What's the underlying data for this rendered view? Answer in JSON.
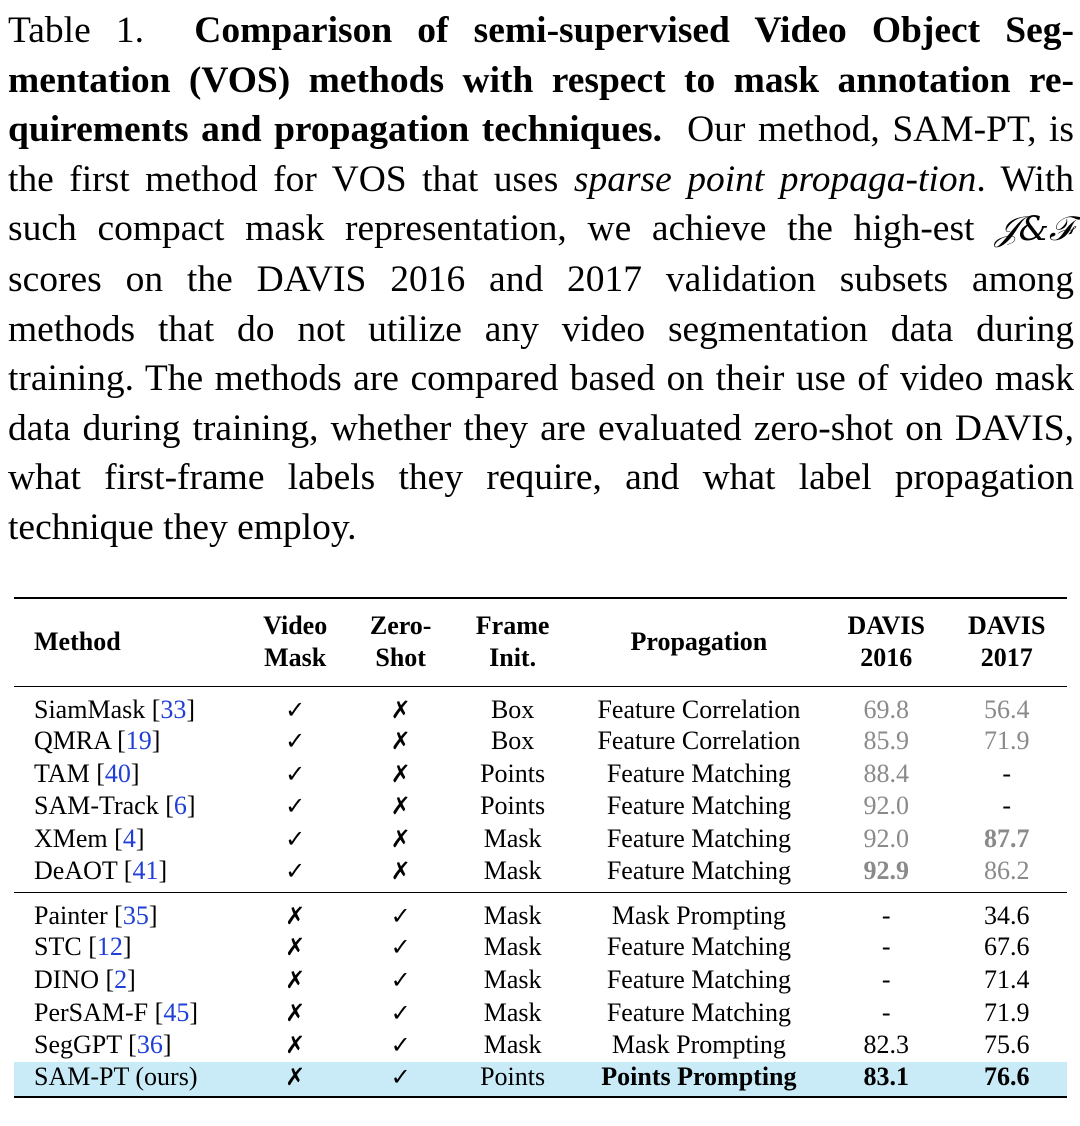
{
  "caption": {
    "label": "Table 1.",
    "bold_text": "Comparison of semi-supervised Video Object Seg-mentation (VOS) methods with respect to mask annotation re-quirements and propagation techniques.",
    "text_1": "Our method, SAM-PT, is the first method for VOS that uses",
    "italic_1": "sparse point propaga-tion",
    "text_2": ". With such compact mask representation, we achieve the high-est",
    "metric": "𝒥&ℱ",
    "text_3": "scores on the DAVIS 2016 and 2017 validation subsets among methods that do not utilize any video segmentation data during training. The methods are compared based on their use of video mask data during training, whether they are evaluated zero-shot on DAVIS, what first-frame labels they require, and what label propagation technique they employ."
  },
  "table": {
    "headers": {
      "method": "Method",
      "video_mask": "Video Mask",
      "zero_shot": "Zero-Shot",
      "frame_init": "Frame Init.",
      "propagation": "Propagation",
      "davis2016": "DAVIS 2016",
      "davis2017": "DAVIS 2017"
    },
    "rows_group1": [
      {
        "method": "SiamMask",
        "cite": "33",
        "video_mask": "✓",
        "zero_shot": "✗",
        "frame_init": "Box",
        "propagation": "Feature Correlation",
        "davis2016": "69.8",
        "davis2017": "56.4"
      },
      {
        "method": "QMRA",
        "cite": "19",
        "video_mask": "✓",
        "zero_shot": "✗",
        "frame_init": "Box",
        "propagation": "Feature Correlation",
        "davis2016": "85.9",
        "davis2017": "71.9"
      },
      {
        "method": "TAM",
        "cite": "40",
        "video_mask": "✓",
        "zero_shot": "✗",
        "frame_init": "Points",
        "propagation": "Feature Matching",
        "davis2016": "88.4",
        "davis2017": "-"
      },
      {
        "method": "SAM-Track",
        "cite": "6",
        "video_mask": "✓",
        "zero_shot": "✗",
        "frame_init": "Points",
        "propagation": "Feature Matching",
        "davis2016": "92.0",
        "davis2017": "-"
      },
      {
        "method": "XMem",
        "cite": "4",
        "video_mask": "✓",
        "zero_shot": "✗",
        "frame_init": "Mask",
        "propagation": "Feature Matching",
        "davis2016": "92.0",
        "davis2017": "87.7"
      },
      {
        "method": "DeAOT",
        "cite": "41",
        "video_mask": "✓",
        "zero_shot": "✗",
        "frame_init": "Mask",
        "propagation": "Feature Matching",
        "davis2016": "92.9",
        "davis2017": "86.2"
      }
    ],
    "rows_group2": [
      {
        "method": "Painter",
        "cite": "35",
        "video_mask": "✗",
        "zero_shot": "✓",
        "frame_init": "Mask",
        "propagation": "Mask Prompting",
        "davis2016": "-",
        "davis2017": "34.6"
      },
      {
        "method": "STC",
        "cite": "12",
        "video_mask": "✗",
        "zero_shot": "✓",
        "frame_init": "Mask",
        "propagation": "Feature Matching",
        "davis2016": "-",
        "davis2017": "67.6"
      },
      {
        "method": "DINO",
        "cite": "2",
        "video_mask": "✗",
        "zero_shot": "✓",
        "frame_init": "Mask",
        "propagation": "Feature Matching",
        "davis2016": "-",
        "davis2017": "71.4"
      },
      {
        "method": "PerSAM-F",
        "cite": "45",
        "video_mask": "✗",
        "zero_shot": "✓",
        "frame_init": "Mask",
        "propagation": "Feature Matching",
        "davis2016": "-",
        "davis2017": "71.9"
      },
      {
        "method": "SegGPT",
        "cite": "36",
        "video_mask": "✗",
        "zero_shot": "✓",
        "frame_init": "Mask",
        "propagation": "Mask Prompting",
        "davis2016": "82.3",
        "davis2017": "75.6"
      },
      {
        "method": "SAM-PT (ours)",
        "cite": "",
        "video_mask": "✗",
        "zero_shot": "✓",
        "frame_init": "Points",
        "propagation": "Points Prompting",
        "davis2016": "83.1",
        "davis2017": "76.6"
      }
    ],
    "highlight_color": "#c9ebf7",
    "gray_value_color": "#8a8a8a",
    "citation_color": "#1f3fd6"
  }
}
